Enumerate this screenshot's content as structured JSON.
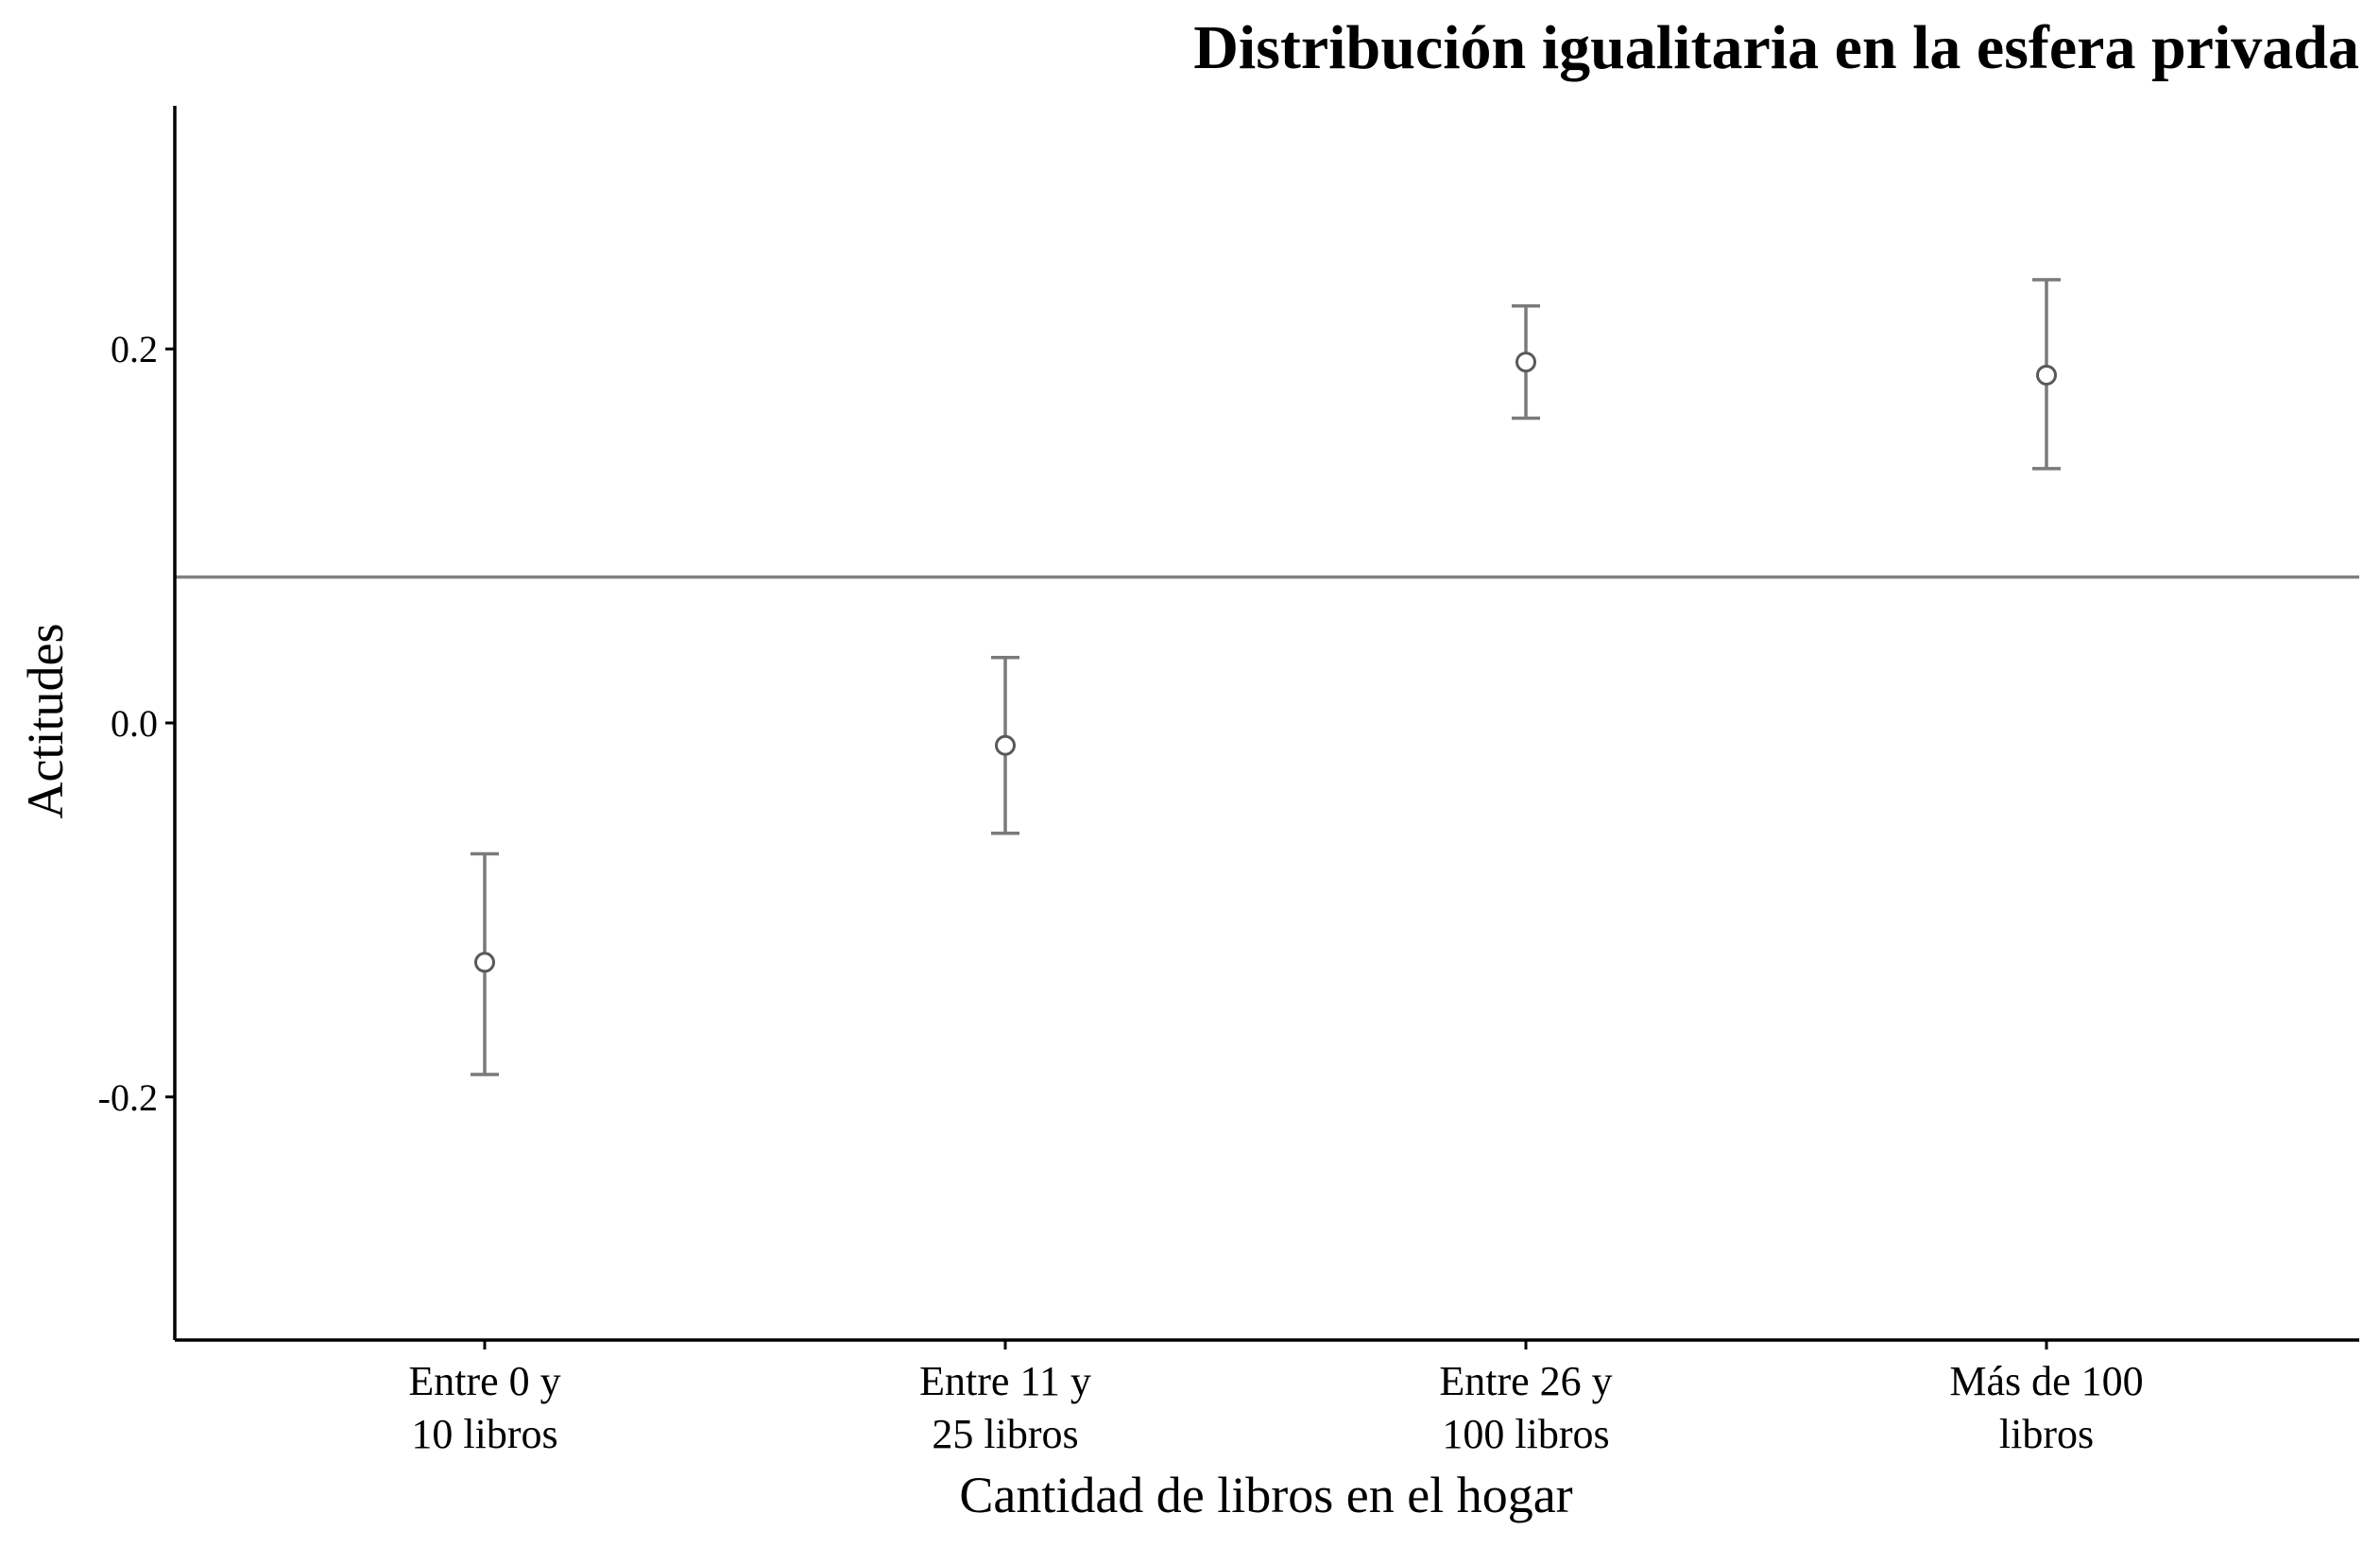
{
  "chart_data": {
    "type": "scatter",
    "title": "Distribución igualitaria en la esfera privada",
    "xlabel": "Cantidad de libros en el hogar",
    "ylabel": "Actitudes",
    "categories": [
      [
        "Entre 0 y",
        "10 libros"
      ],
      [
        "Entre 11 y",
        "25 libros"
      ],
      [
        "Entre 26 y",
        "100 libros"
      ],
      [
        "Más de 100",
        "libros"
      ]
    ],
    "points": [
      {
        "estimate": -0.128,
        "lower": -0.188,
        "upper": -0.07
      },
      {
        "estimate": -0.012,
        "lower": -0.059,
        "upper": 0.035
      },
      {
        "estimate": 0.193,
        "lower": 0.163,
        "upper": 0.223
      },
      {
        "estimate": 0.186,
        "lower": 0.136,
        "upper": 0.237
      }
    ],
    "reference_line": 0.078,
    "ylim": [
      -0.33,
      0.33
    ],
    "yticks": [
      -0.2,
      0.0,
      0.2
    ],
    "ytick_labels": [
      "-0.2",
      "0.0",
      "0.2"
    ],
    "grid": false,
    "legend": "none"
  }
}
